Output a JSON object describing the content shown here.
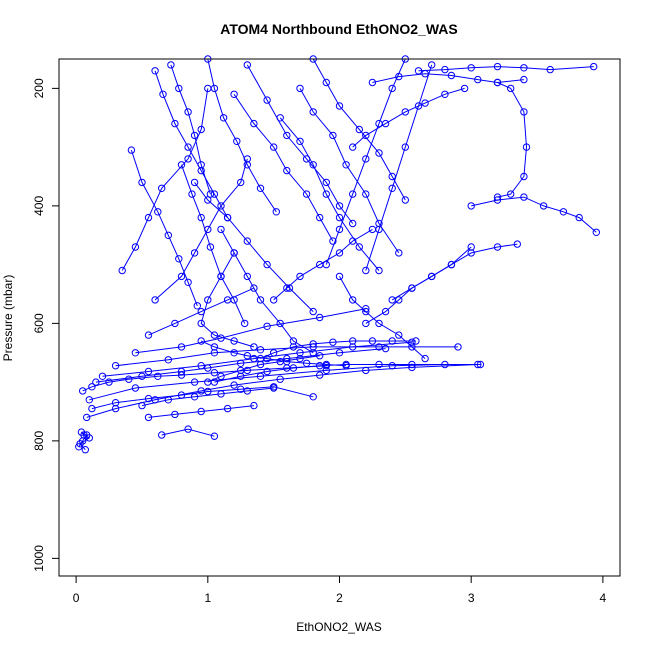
{
  "chart_data": {
    "type": "line",
    "title": "ATOM4 Northbound EthONO2_WAS",
    "xlabel": "EthONO2_WAS",
    "ylabel": "Pressure (mbar)",
    "xlim": [
      -0.13,
      4.13
    ],
    "ylim": [
      1030,
      150
    ],
    "y_reversed": true,
    "x_ticks": [
      "0",
      "1",
      "2",
      "3",
      "4"
    ],
    "y_ticks": [
      "200",
      "400",
      "600",
      "800",
      "1000"
    ],
    "x_tick_values": [
      0,
      1,
      2,
      3,
      4
    ],
    "y_tick_values": [
      200,
      400,
      600,
      800,
      1000
    ],
    "grid": false,
    "legend": "none",
    "series_color": "#0000ff",
    "marker": "open-circle",
    "series": [
      {
        "x": [
          0.02,
          0.05,
          0.08,
          0.04,
          0.06,
          0.1,
          0.03,
          0.07
        ],
        "y": [
          810,
          800,
          790,
          785,
          790,
          795,
          805,
          815
        ]
      },
      {
        "x": [
          0.05,
          0.12,
          0.25,
          0.4,
          0.62,
          0.8,
          1.05,
          1.3,
          1.6,
          1.9
        ],
        "y": [
          715,
          708,
          700,
          695,
          690,
          688,
          684,
          680,
          676,
          672
        ]
      },
      {
        "x": [
          0.08,
          0.3,
          0.6,
          0.95,
          1.2,
          1.55,
          1.85,
          2.2,
          2.55,
          3.05
        ],
        "y": [
          760,
          745,
          730,
          715,
          705,
          695,
          688,
          680,
          675,
          670
        ]
      },
      {
        "x": [
          0.1,
          0.45,
          0.9,
          1.4,
          1.9,
          2.4,
          2.8
        ],
        "y": [
          730,
          710,
          700,
          690,
          680,
          672,
          670
        ]
      },
      {
        "x": [
          0.15,
          0.5,
          0.8,
          1.0,
          1.25,
          1.6,
          2.0,
          2.35
        ],
        "y": [
          700,
          690,
          682,
          676,
          668,
          660,
          650,
          643
        ]
      },
      {
        "x": [
          0.2,
          0.55,
          0.95,
          1.35,
          1.7,
          2.1,
          2.55
        ],
        "y": [
          690,
          682,
          672,
          660,
          650,
          640,
          632
        ]
      },
      {
        "x": [
          0.3,
          0.7,
          1.05,
          1.4,
          1.8,
          2.3,
          2.9
        ],
        "y": [
          672,
          662,
          650,
          645,
          640,
          640,
          640
        ]
      },
      {
        "x": [
          0.45,
          0.8,
          1.1,
          1.45,
          1.85,
          2.2
        ],
        "y": [
          650,
          640,
          625,
          605,
          590,
          575
        ]
      },
      {
        "x": [
          0.55,
          0.75,
          0.95,
          1.15,
          1.35
        ],
        "y": [
          620,
          600,
          580,
          560,
          540
        ]
      },
      {
        "x": [
          0.6,
          0.8,
          0.9,
          1.0,
          1.1,
          1.25,
          1.3
        ],
        "y": [
          560,
          520,
          480,
          440,
          400,
          360,
          320
        ]
      },
      {
        "x": [
          0.35,
          0.45,
          0.55,
          0.65,
          0.85,
          0.95,
          1.0
        ],
        "y": [
          510,
          470,
          420,
          370,
          320,
          270,
          200
        ]
      },
      {
        "x": [
          0.42,
          0.5,
          0.62,
          0.7,
          0.78,
          0.85,
          0.92
        ],
        "y": [
          305,
          360,
          410,
          450,
          490,
          530,
          570
        ]
      },
      {
        "x": [
          0.72,
          0.78,
          0.85,
          0.9,
          0.95,
          1.02
        ],
        "y": [
          160,
          200,
          240,
          280,
          330,
          380
        ]
      },
      {
        "x": [
          0.6,
          0.66,
          0.75,
          0.85,
          0.95,
          1.05,
          1.15
        ],
        "y": [
          170,
          210,
          260,
          300,
          340,
          380,
          420
        ]
      },
      {
        "x": [
          1.0,
          1.05,
          1.12,
          1.22,
          1.3,
          1.4,
          1.52
        ],
        "y": [
          150,
          200,
          250,
          290,
          330,
          370,
          410
        ]
      },
      {
        "x": [
          1.1,
          1.2,
          1.3,
          1.4,
          1.55,
          1.65,
          1.8
        ],
        "y": [
          440,
          480,
          520,
          560,
          600,
          630,
          650
        ]
      },
      {
        "x": [
          1.2,
          1.35,
          1.5,
          1.6,
          1.75,
          1.85,
          1.95
        ],
        "y": [
          210,
          260,
          300,
          340,
          380,
          420,
          460
        ]
      },
      {
        "x": [
          1.3,
          1.45,
          1.6,
          1.75,
          1.9,
          2.0,
          2.1
        ],
        "y": [
          160,
          220,
          280,
          320,
          360,
          400,
          430
        ]
      },
      {
        "x": [
          1.55,
          1.7,
          1.8,
          1.9,
          2.0,
          2.15,
          2.3
        ],
        "y": [
          250,
          290,
          330,
          380,
          420,
          470,
          510
        ]
      },
      {
        "x": [
          1.7,
          1.8,
          1.95,
          2.05,
          2.2,
          2.3,
          2.45
        ],
        "y": [
          200,
          240,
          280,
          330,
          380,
          430,
          480
        ]
      },
      {
        "x": [
          1.8,
          1.9,
          2.0,
          2.15,
          2.3,
          2.4,
          2.5
        ],
        "y": [
          150,
          190,
          230,
          270,
          310,
          350,
          390
        ]
      },
      {
        "x": [
          2.0,
          2.1,
          2.2,
          2.3,
          2.45,
          2.55,
          2.65
        ],
        "y": [
          520,
          560,
          580,
          600,
          620,
          640,
          660
        ]
      },
      {
        "x": [
          2.2,
          2.35,
          2.45,
          2.55,
          2.7,
          2.85,
          3.0
        ],
        "y": [
          600,
          580,
          560,
          540,
          520,
          500,
          470
        ]
      },
      {
        "x": [
          2.4,
          2.55,
          2.7,
          2.85,
          3.0,
          3.2,
          3.35
        ],
        "y": [
          560,
          540,
          520,
          500,
          480,
          470,
          465
        ]
      },
      {
        "x": [
          2.25,
          2.45,
          2.65,
          2.85,
          3.05,
          3.2,
          3.4
        ],
        "y": [
          190,
          180,
          175,
          178,
          185,
          190,
          185
        ]
      },
      {
        "x": [
          2.6,
          2.8,
          3.0,
          3.2,
          3.4,
          3.6,
          3.93
        ],
        "y": [
          170,
          168,
          165,
          163,
          165,
          168,
          163
        ]
      },
      {
        "x": [
          3.2,
          3.3,
          3.4,
          3.42,
          3.4,
          3.3,
          3.2
        ],
        "y": [
          190,
          200,
          240,
          300,
          350,
          380,
          385
        ]
      },
      {
        "x": [
          3.0,
          3.2,
          3.4,
          3.55,
          3.7,
          3.82,
          3.95
        ],
        "y": [
          400,
          390,
          385,
          400,
          410,
          420,
          445
        ]
      },
      {
        "x": [
          2.1,
          2.2,
          2.35,
          2.5,
          2.65,
          2.8,
          2.95
        ],
        "y": [
          300,
          280,
          260,
          240,
          225,
          210,
          200
        ]
      },
      {
        "x": [
          1.5,
          1.6,
          1.7,
          1.85,
          2.0,
          2.1,
          2.25
        ],
        "y": [
          560,
          540,
          520,
          500,
          480,
          460,
          440
        ]
      },
      {
        "x": [
          1.0,
          1.1,
          1.25,
          1.4,
          1.55,
          1.7,
          1.85
        ],
        "y": [
          700,
          690,
          680,
          670,
          665,
          660,
          655
        ]
      },
      {
        "x": [
          0.5,
          0.7,
          0.9,
          1.1,
          1.3,
          1.5
        ],
        "y": [
          740,
          730,
          725,
          720,
          715,
          710
        ]
      },
      {
        "x": [
          0.55,
          0.75,
          0.95,
          1.15,
          1.35
        ],
        "y": [
          760,
          755,
          750,
          745,
          740
        ]
      },
      {
        "x": [
          0.65,
          0.85,
          1.05
        ],
        "y": [
          790,
          780,
          792
        ]
      },
      {
        "x": [
          0.12,
          0.3,
          0.55,
          0.8,
          1.0,
          1.25,
          1.5,
          1.8
        ],
        "y": [
          745,
          735,
          728,
          722,
          716,
          712,
          708,
          725
        ]
      },
      {
        "x": [
          0.95,
          1.05,
          1.2,
          1.3,
          1.45,
          1.6,
          1.75,
          1.9,
          2.05
        ],
        "y": [
          630,
          640,
          650,
          655,
          660,
          665,
          668,
          670,
          672
        ]
      },
      {
        "x": [
          1.2,
          1.1,
          1.0,
          0.95,
          1.05,
          1.2,
          1.35
        ],
        "y": [
          480,
          520,
          560,
          600,
          620,
          630,
          640
        ]
      },
      {
        "x": [
          0.8,
          0.88,
          0.95,
          1.02,
          1.1,
          1.2,
          1.28
        ],
        "y": [
          330,
          380,
          420,
          470,
          520,
          560,
          600
        ]
      },
      {
        "x": [
          0.9,
          1.0,
          1.15,
          1.3,
          1.45,
          1.62,
          1.8
        ],
        "y": [
          360,
          390,
          420,
          460,
          500,
          540,
          580
        ]
      },
      {
        "x": [
          2.5,
          2.4,
          2.3,
          2.2,
          2.1,
          2.0,
          1.9
        ],
        "y": [
          150,
          200,
          260,
          320,
          380,
          440,
          500
        ]
      },
      {
        "x": [
          2.7,
          2.6,
          2.5,
          2.4,
          2.3,
          2.2
        ],
        "y": [
          160,
          230,
          300,
          370,
          440,
          510
        ]
      },
      {
        "x": [
          1.4,
          1.5,
          1.65,
          1.8,
          1.95,
          2.1,
          2.25,
          2.4,
          2.58
        ],
        "y": [
          660,
          650,
          640,
          635,
          632,
          630,
          630,
          630,
          630
        ]
      },
      {
        "x": [
          1.05,
          1.25,
          1.45,
          1.65,
          1.85,
          2.05,
          2.3,
          2.55,
          3.07
        ],
        "y": [
          700,
          690,
          682,
          676,
          672,
          670,
          670,
          670,
          670
        ]
      }
    ]
  }
}
